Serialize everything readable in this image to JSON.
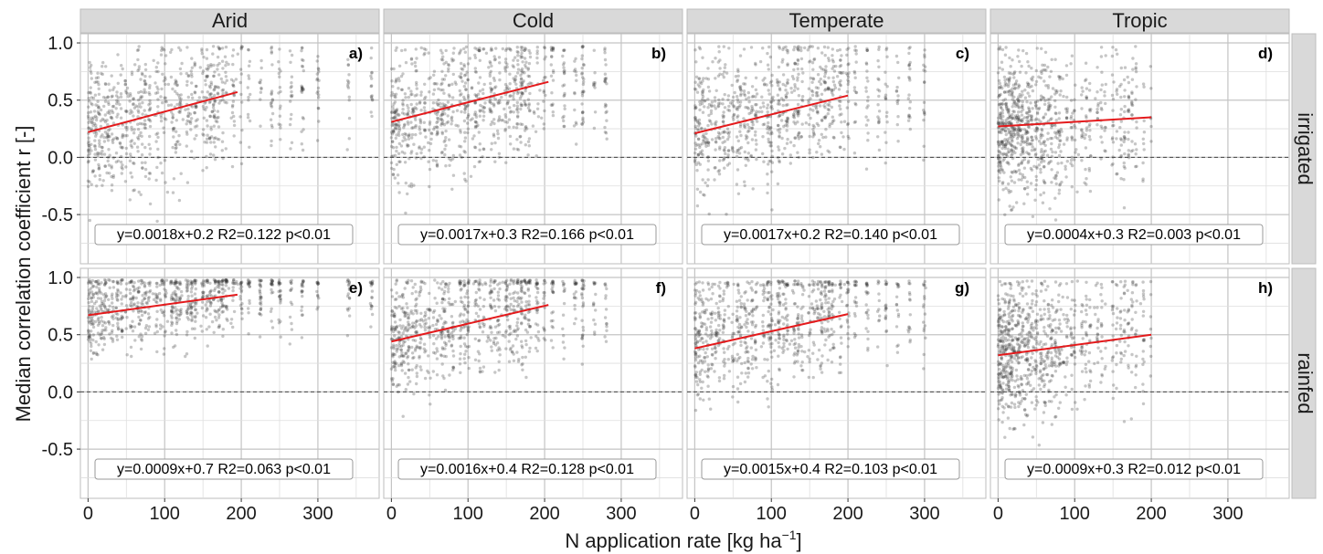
{
  "chart_data": {
    "type": "scatter",
    "xlabel": "N application rate [kg ha",
    "xlabel_superscript": "−1",
    "xlabel_suffix": "]",
    "ylabel": "Median correlation coefficient r [-]",
    "xlim": [
      -10,
      380
    ],
    "ylim": [
      -0.93,
      1.08
    ],
    "x_ticks": [
      0,
      100,
      200,
      300
    ],
    "y_ticks": [
      -0.5,
      0.0,
      0.5,
      1.0
    ],
    "y_tick_labels": [
      "-0.5",
      "0.0",
      "0.5",
      "1.0"
    ],
    "column_strips": [
      "Arid",
      "Cold",
      "Temperate",
      "Tropic"
    ],
    "row_strips": [
      "irrigated",
      "rainfed"
    ],
    "reference_line": {
      "y": 0,
      "style": "dashed"
    },
    "grid": true,
    "point_color": "#333333",
    "fit_color": "#e41a1c",
    "panels": [
      {
        "letter": "a)",
        "row": 0,
        "col": 0,
        "equation": "y=0.0018x+0.2 R2=0.122 p<0.01",
        "fit": {
          "x": [
            0,
            195
          ],
          "y": [
            0.22,
            0.57
          ]
        },
        "data_x_max": 380,
        "cloud": {
          "center": 0.4,
          "sd": 0.28,
          "lo": -0.6,
          "hi": 0.97
        }
      },
      {
        "letter": "b)",
        "row": 0,
        "col": 1,
        "equation": "y=0.0017x+0.3 R2=0.166 p<0.01",
        "fit": {
          "x": [
            0,
            205
          ],
          "y": [
            0.31,
            0.66
          ]
        },
        "data_x_max": 290,
        "cloud": {
          "center": 0.5,
          "sd": 0.28,
          "lo": -0.55,
          "hi": 0.97
        }
      },
      {
        "letter": "c)",
        "row": 0,
        "col": 2,
        "equation": "y=0.0017x+0.2 R2=0.140 p<0.01",
        "fit": {
          "x": [
            0,
            200
          ],
          "y": [
            0.21,
            0.54
          ]
        },
        "data_x_max": 300,
        "cloud": {
          "center": 0.4,
          "sd": 0.28,
          "lo": -0.6,
          "hi": 0.97
        }
      },
      {
        "letter": "d)",
        "row": 0,
        "col": 3,
        "equation": "y=0.0004x+0.3 R2=0.003 p<0.01",
        "fit": {
          "x": [
            0,
            200
          ],
          "y": [
            0.27,
            0.35
          ]
        },
        "data_x_max": 200,
        "cloud": {
          "center": 0.3,
          "sd": 0.3,
          "lo": -0.75,
          "hi": 0.97
        }
      },
      {
        "letter": "e)",
        "row": 1,
        "col": 0,
        "equation": "y=0.0009x+0.7 R2=0.063 p<0.01",
        "fit": {
          "x": [
            0,
            195
          ],
          "y": [
            0.67,
            0.85
          ]
        },
        "data_x_max": 380,
        "cloud": {
          "center": 0.78,
          "sd": 0.18,
          "lo": -0.35,
          "hi": 0.98
        }
      },
      {
        "letter": "f)",
        "row": 1,
        "col": 1,
        "equation": "y=0.0016x+0.4 R2=0.128 p<0.01",
        "fit": {
          "x": [
            0,
            205
          ],
          "y": [
            0.44,
            0.76
          ]
        },
        "data_x_max": 290,
        "cloud": {
          "center": 0.65,
          "sd": 0.25,
          "lo": -0.6,
          "hi": 0.98
        }
      },
      {
        "letter": "g)",
        "row": 1,
        "col": 2,
        "equation": "y=0.0015x+0.4 R2=0.103 p<0.01",
        "fit": {
          "x": [
            0,
            200
          ],
          "y": [
            0.38,
            0.68
          ]
        },
        "data_x_max": 300,
        "cloud": {
          "center": 0.6,
          "sd": 0.26,
          "lo": -0.75,
          "hi": 0.97
        }
      },
      {
        "letter": "h)",
        "row": 1,
        "col": 3,
        "equation": "y=0.0009x+0.3 R2=0.012 p<0.01",
        "fit": {
          "x": [
            0,
            200
          ],
          "y": [
            0.32,
            0.5
          ]
        },
        "data_x_max": 200,
        "cloud": {
          "center": 0.45,
          "sd": 0.3,
          "lo": -0.85,
          "hi": 0.97
        }
      }
    ]
  }
}
